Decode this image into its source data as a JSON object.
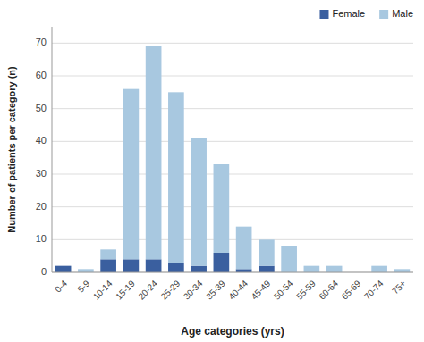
{
  "chart_data": {
    "type": "bar",
    "stacked": true,
    "xlabel": "Age categories (yrs)",
    "ylabel": "Number of patients per category (n)",
    "categories": [
      "0-4",
      "5-9",
      "10-14",
      "15-19",
      "20-24",
      "25-29",
      "30-34",
      "35-39",
      "40-44",
      "45-49",
      "50-54",
      "55-59",
      "60-64",
      "65-69",
      "70-74",
      "75+"
    ],
    "series": [
      {
        "name": "Female",
        "color": "#3A5F9F",
        "values": [
          2,
          0,
          4,
          4,
          4,
          3,
          2,
          6,
          1,
          2,
          0,
          0,
          0,
          0,
          0,
          0
        ]
      },
      {
        "name": "Male",
        "color": "#A8C8E0",
        "values": [
          0,
          1,
          3,
          52,
          65,
          52,
          39,
          27,
          13,
          8,
          8,
          2,
          2,
          0,
          2,
          1
        ]
      }
    ],
    "ylim": [
      0,
      75
    ],
    "yticks": [
      0,
      10,
      20,
      30,
      40,
      50,
      60,
      70
    ],
    "grid": true,
    "legend": "upper right"
  }
}
